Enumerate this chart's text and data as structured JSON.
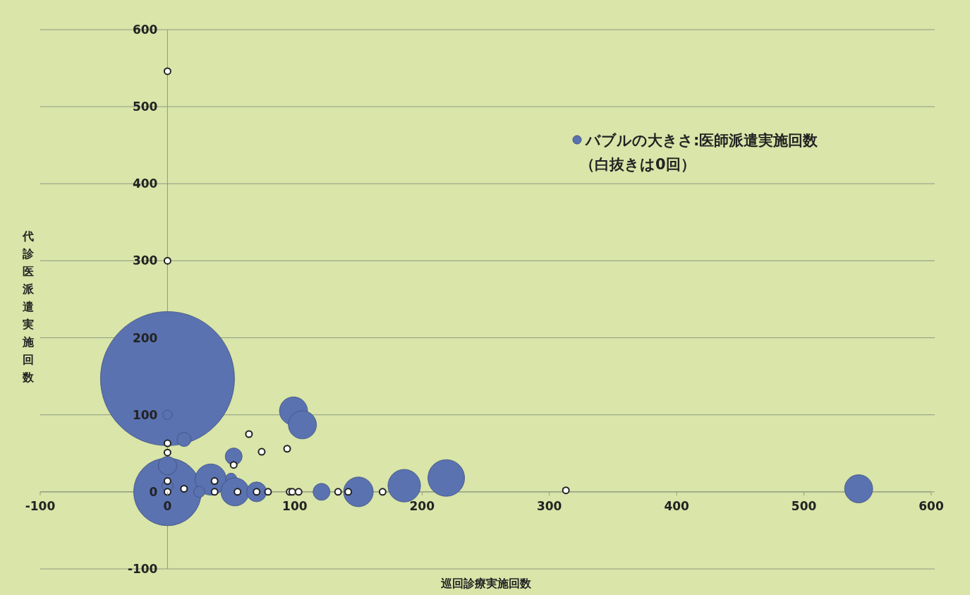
{
  "chart_data": {
    "type": "bubble",
    "xlabel": "巡回診療実施回数",
    "ylabel": "代診医派遣実施回数",
    "xlim": [
      -100,
      600
    ],
    "ylim": [
      -100,
      600
    ],
    "xticks": [
      -100,
      0,
      100,
      200,
      300,
      400,
      500,
      600
    ],
    "yticks": [
      -100,
      0,
      100,
      200,
      300,
      400,
      500,
      600
    ],
    "grid": "y",
    "legend": "top right",
    "annotations": [
      "（白抜きは0回）"
    ],
    "series": [
      {
        "name": "バブルの大きさ:医師派遣実施回数",
        "color": "#5a72b0",
        "x": [
          0,
          0,
          13,
          0,
          0,
          0,
          34,
          52,
          50,
          53,
          25,
          70,
          99,
          106,
          121,
          150,
          186,
          219,
          543
        ],
        "values": [
          147,
          100,
          68,
          0,
          34,
          8,
          16,
          46,
          17,
          0,
          0,
          0,
          105,
          87,
          0,
          0,
          8,
          18,
          4
        ],
        "sizes": [
          1,
          0.005,
          0.011,
          0.255,
          0.019,
          0.007,
          0.054,
          0.016,
          0.007,
          0.044,
          0.007,
          0.022,
          0.044,
          0.044,
          0.016,
          0.049,
          0.059,
          0.075,
          0.044
        ]
      },
      {
        "color": "#ffffff",
        "type": "scatter",
        "marker": "circle",
        "x": [
          0,
          0,
          0,
          0,
          0,
          0,
          13,
          37,
          37,
          52,
          64,
          74,
          94,
          55,
          70,
          79,
          96,
          98,
          103,
          134,
          142,
          169,
          313
        ],
        "values": [
          546,
          300,
          63,
          51,
          14,
          0,
          4,
          14,
          0,
          35,
          75,
          52,
          56,
          0,
          0,
          0,
          0,
          0,
          0,
          0,
          0,
          0,
          2
        ]
      }
    ]
  }
}
